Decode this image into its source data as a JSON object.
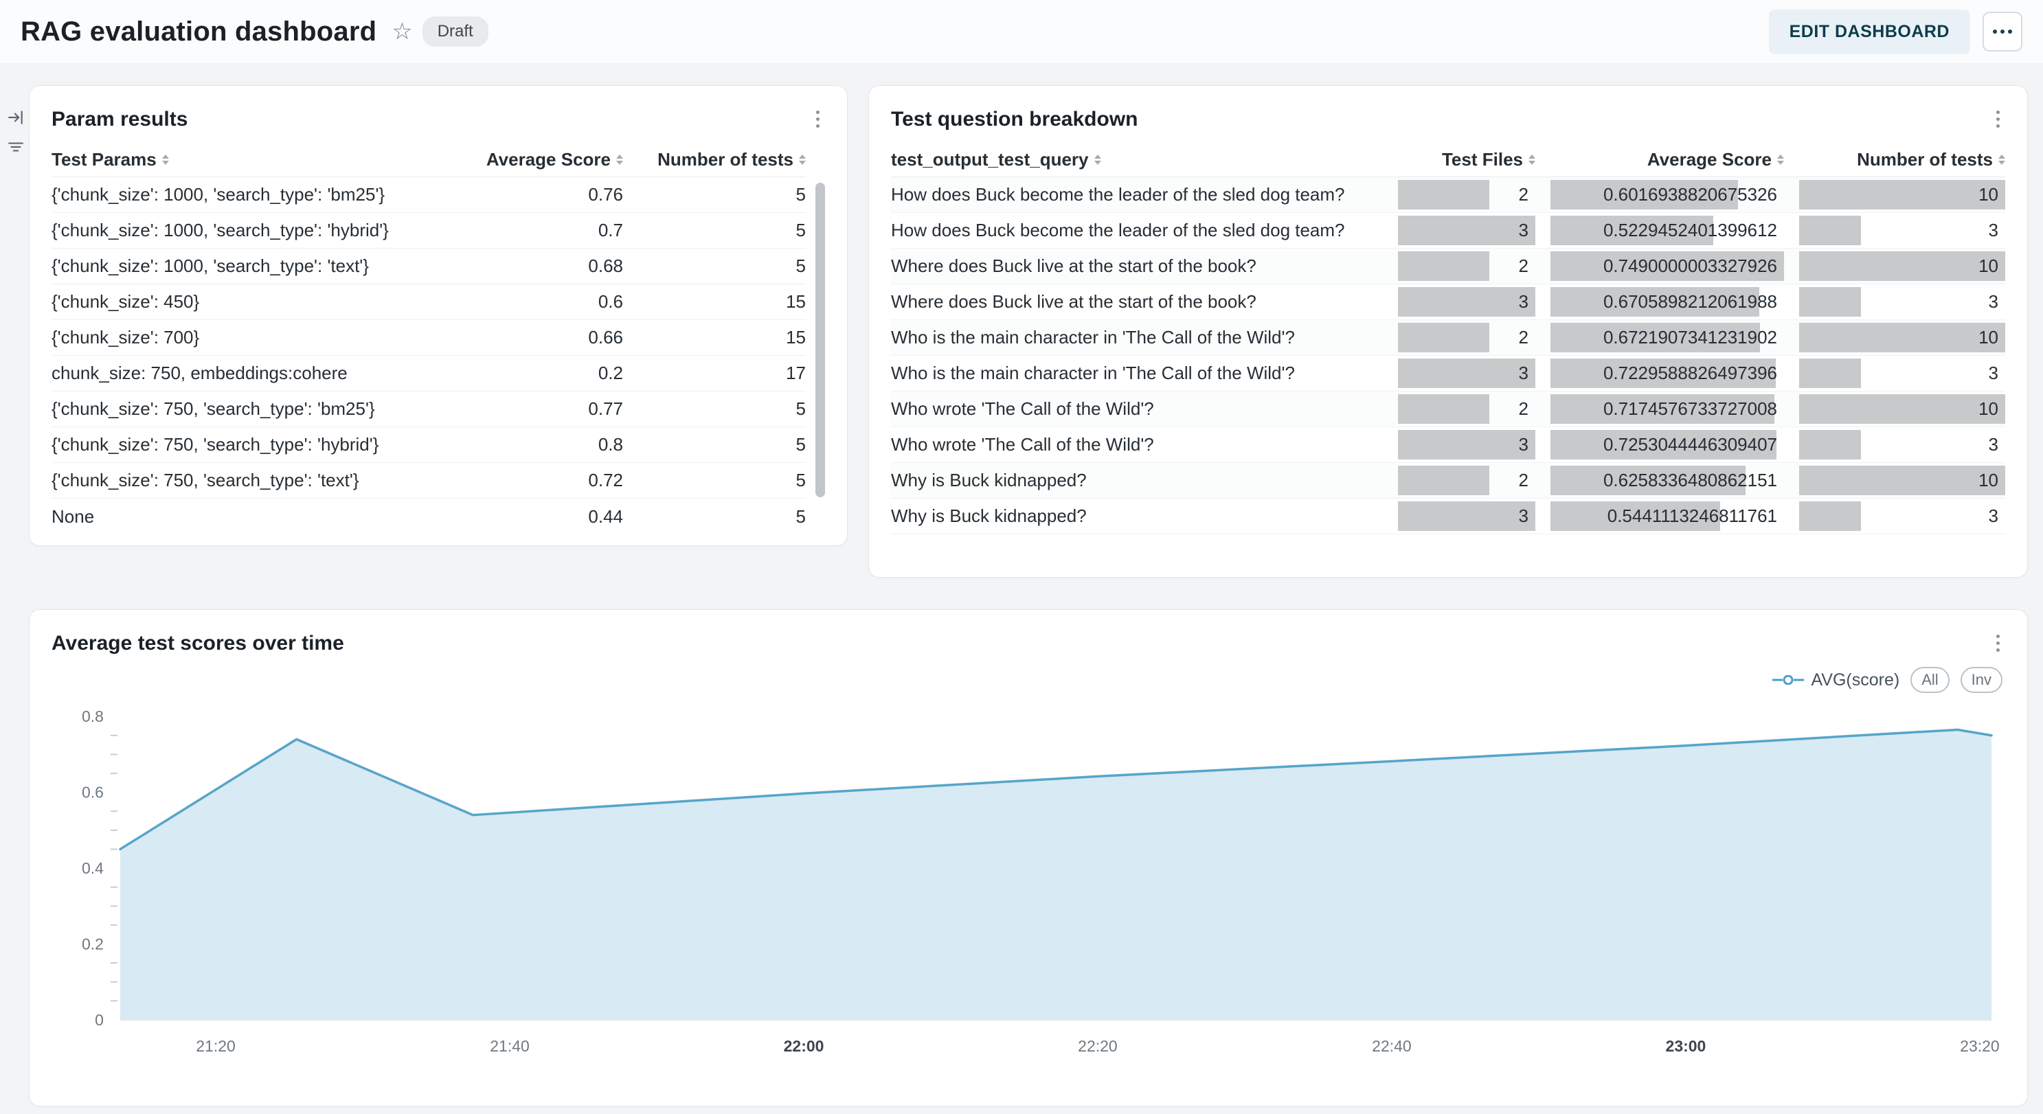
{
  "header": {
    "title": "RAG evaluation dashboard",
    "status_badge": "Draft",
    "edit_button_label": "EDIT DASHBOARD"
  },
  "param_results": {
    "title": "Param results",
    "columns": [
      "Test Params",
      "Average Score",
      "Number of tests"
    ],
    "rows": [
      [
        "{'chunk_size': 1000, 'search_type': 'bm25'}",
        "0.76",
        "5"
      ],
      [
        "{'chunk_size': 1000, 'search_type': 'hybrid'}",
        "0.7",
        "5"
      ],
      [
        "{'chunk_size': 1000, 'search_type': 'text'}",
        "0.68",
        "5"
      ],
      [
        "{'chunk_size': 450}",
        "0.6",
        "15"
      ],
      [
        "{'chunk_size': 700}",
        "0.66",
        "15"
      ],
      [
        "chunk_size: 750, embeddings:cohere",
        "0.2",
        "17"
      ],
      [
        "{'chunk_size': 750, 'search_type': 'bm25'}",
        "0.77",
        "5"
      ],
      [
        "{'chunk_size': 750, 'search_type': 'hybrid'}",
        "0.8",
        "5"
      ],
      [
        "{'chunk_size': 750, 'search_type': 'text'}",
        "0.72",
        "5"
      ],
      [
        "None",
        "0.44",
        "5"
      ]
    ]
  },
  "question_breakdown": {
    "title": "Test question breakdown",
    "columns": [
      "test_output_test_query",
      "Test Files",
      "Average Score",
      "Number of tests"
    ],
    "bar_color": "#c7c9cb",
    "rows": [
      {
        "query": "How does Buck become the leader of the sled dog team?",
        "files": 2,
        "avg": "0.6016938820675326",
        "tests": 10
      },
      {
        "query": "How does Buck become the leader of the sled dog team?",
        "files": 3,
        "avg": "0.5229452401399612",
        "tests": 3
      },
      {
        "query": "Where does Buck live at the start of the book?",
        "files": 2,
        "avg": "0.7490000003327926",
        "tests": 10
      },
      {
        "query": "Where does Buck live at the start of the book?",
        "files": 3,
        "avg": "0.6705898212061988",
        "tests": 3
      },
      {
        "query": "Who is the main character in 'The Call of the Wild'?",
        "files": 2,
        "avg": "0.6721907341231902",
        "tests": 10
      },
      {
        "query": "Who is the main character in 'The Call of the Wild'?",
        "files": 3,
        "avg": "0.7229588826497396",
        "tests": 3
      },
      {
        "query": "Who wrote 'The Call of the Wild'?",
        "files": 2,
        "avg": "0.7174576733727008",
        "tests": 10
      },
      {
        "query": "Who wrote 'The Call of the Wild'?",
        "files": 3,
        "avg": "0.7253044446309407",
        "tests": 3
      },
      {
        "query": "Why is Buck kidnapped?",
        "files": 2,
        "avg": "0.6258336480862151",
        "tests": 10
      },
      {
        "query": "Why is Buck kidnapped?",
        "files": 3,
        "avg": "0.5441113246811761",
        "tests": 3
      }
    ]
  },
  "chart_panel": {
    "title": "Average test scores over time",
    "legend_label": "AVG(score)",
    "buttons": [
      "All",
      "Inv"
    ]
  },
  "chart_data": {
    "type": "area",
    "title": "Average test scores over time",
    "series": [
      {
        "name": "AVG(score)",
        "points": [
          [
            13.5,
            0.45
          ],
          [
            25.5,
            0.74
          ],
          [
            37.5,
            0.54
          ],
          [
            60,
            0.597
          ],
          [
            80,
            0.642
          ],
          [
            100,
            0.682
          ],
          [
            120,
            0.723
          ],
          [
            138.5,
            0.765
          ],
          [
            140.8,
            0.75
          ]
        ]
      }
    ],
    "x_ticks": [
      {
        "t": 20,
        "label": "21:20",
        "bold": false
      },
      {
        "t": 40,
        "label": "21:40",
        "bold": false
      },
      {
        "t": 60,
        "label": "22:00",
        "bold": true
      },
      {
        "t": 80,
        "label": "22:20",
        "bold": false
      },
      {
        "t": 100,
        "label": "22:40",
        "bold": false
      },
      {
        "t": 120,
        "label": "23:00",
        "bold": true
      },
      {
        "t": 140,
        "label": "23:20",
        "bold": false
      }
    ],
    "y_ticks": [
      "0",
      "0.2",
      "0.4",
      "0.6",
      "0.8"
    ],
    "y_minor_step": 0.05,
    "xlim": [
      13.5,
      140.8
    ],
    "ylim": [
      0,
      0.8
    ],
    "grid": false,
    "legend_position": "top-right",
    "line_color": "#57a5c9",
    "fill_color": "#d8eaf3"
  }
}
